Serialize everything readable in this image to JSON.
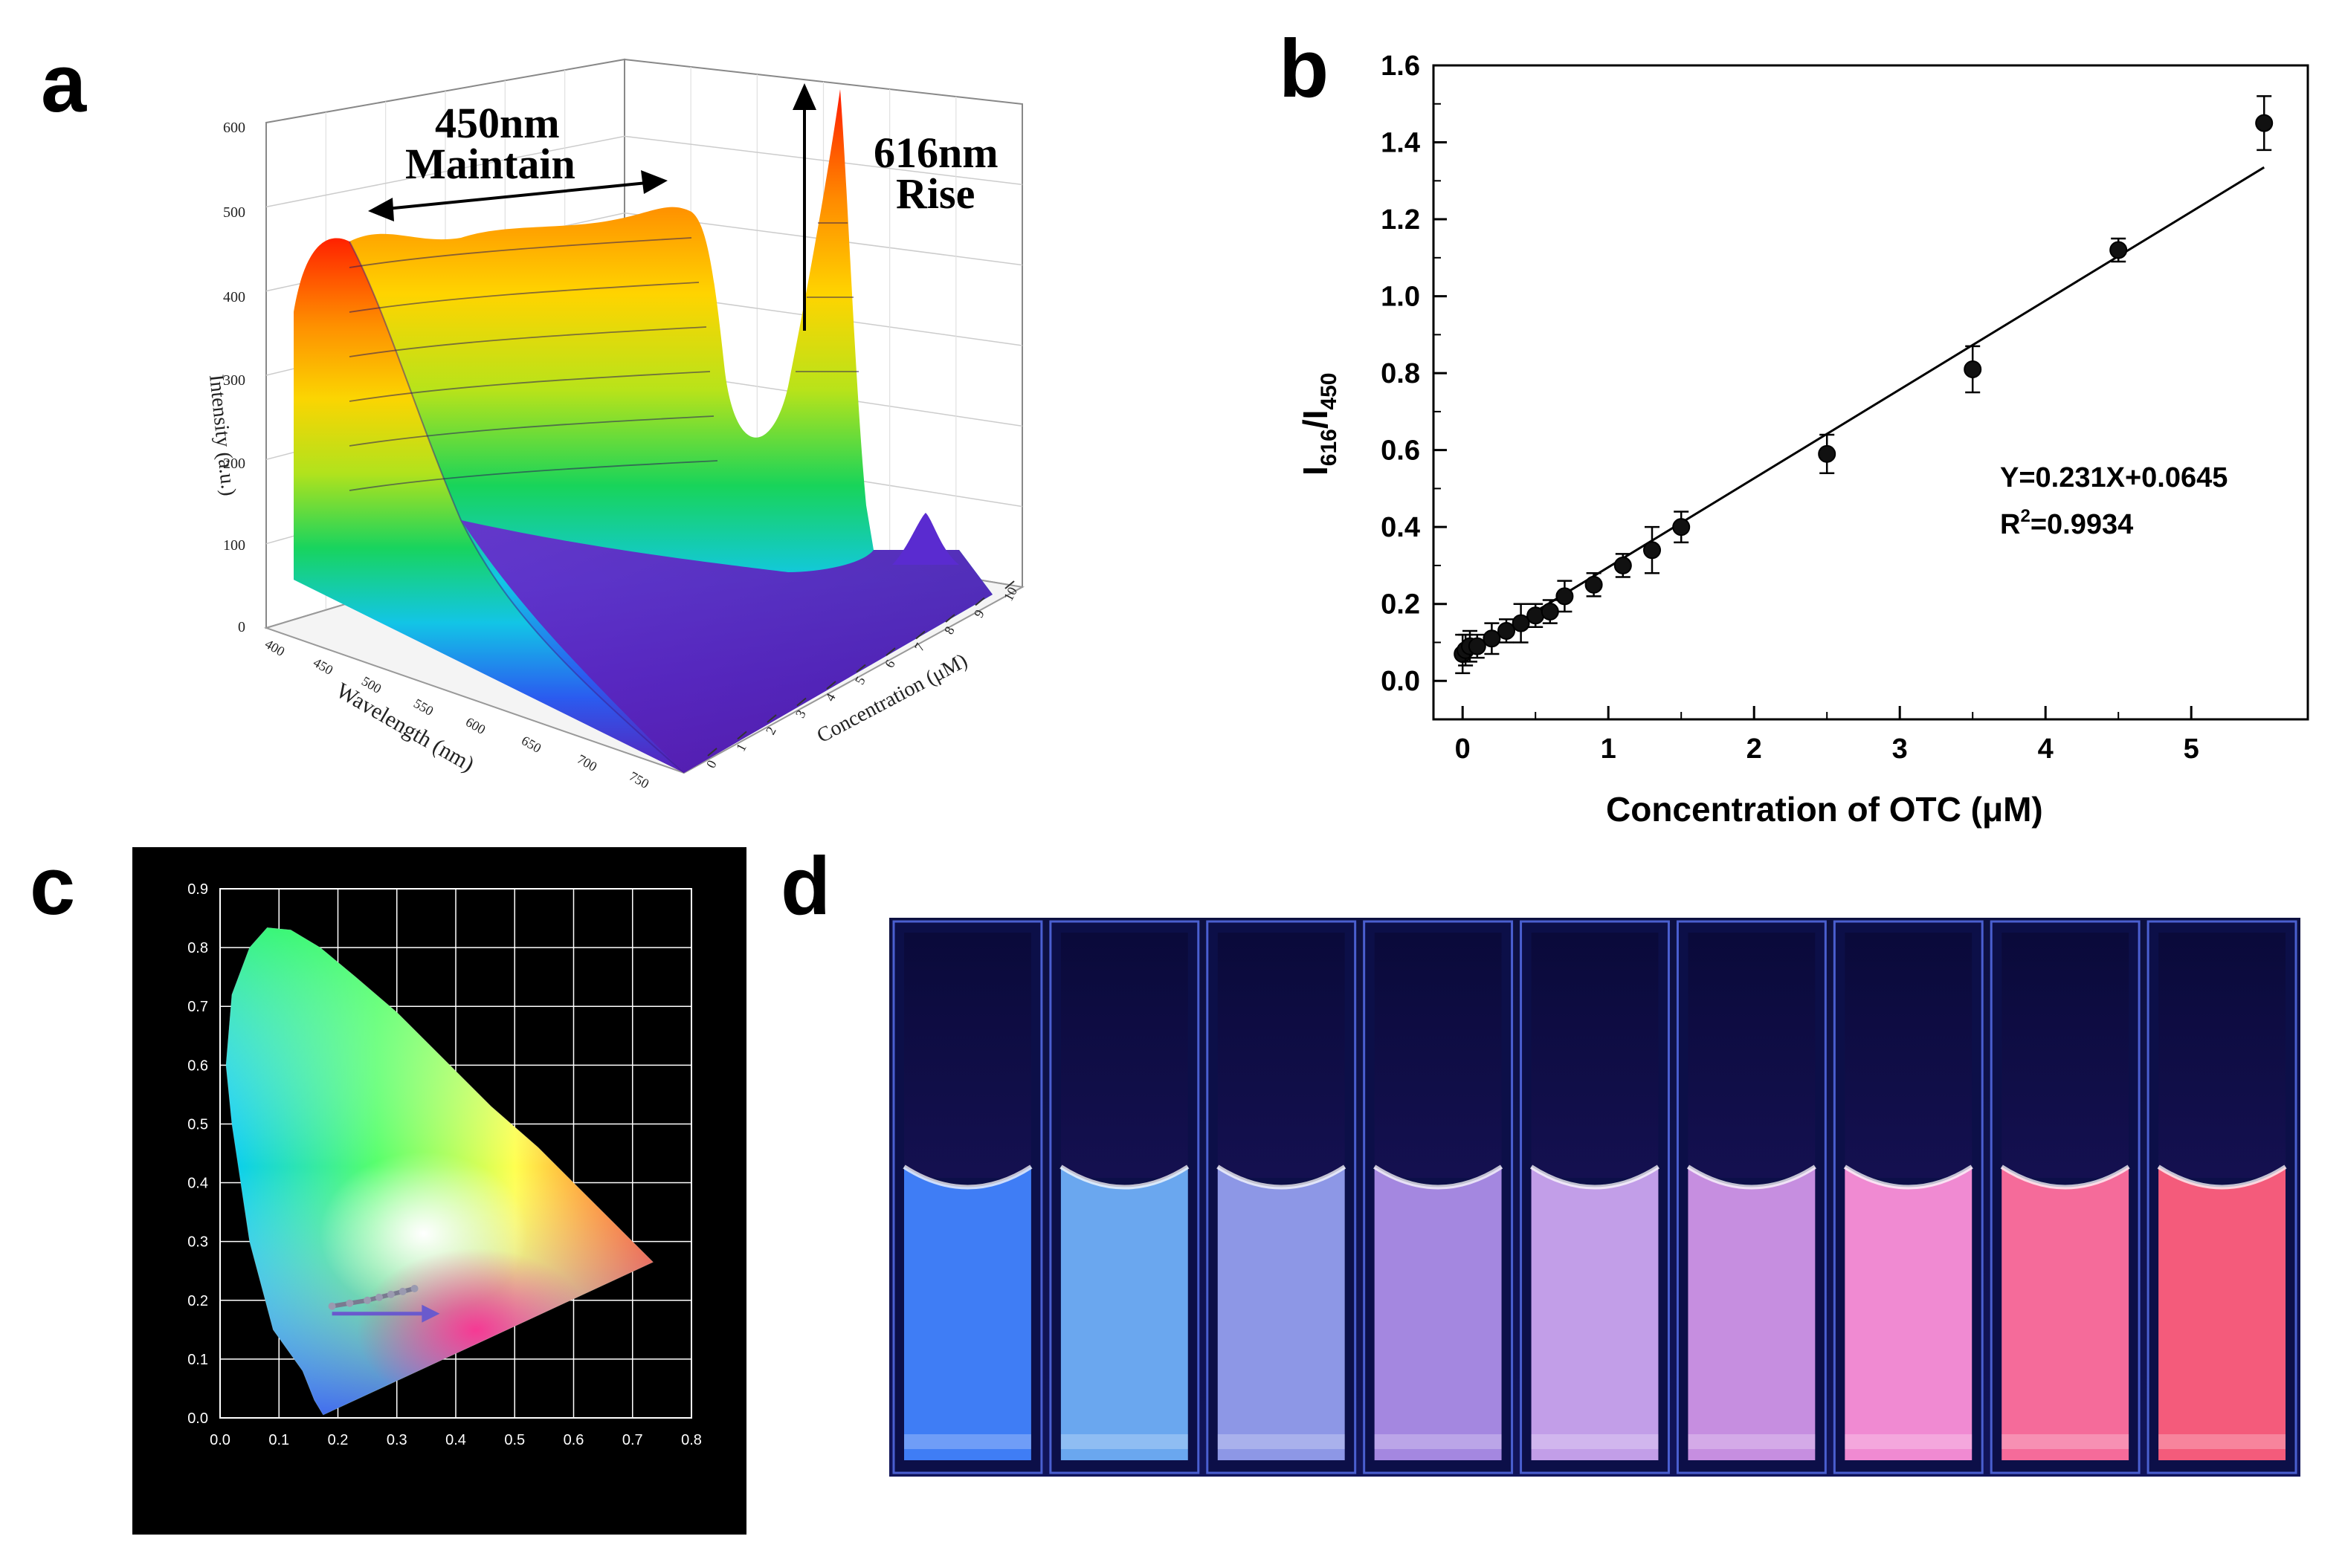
{
  "panels": {
    "a": {
      "letter": "a"
    },
    "b": {
      "letter": "b"
    },
    "c": {
      "letter": "c"
    },
    "d": {
      "letter": "d"
    }
  },
  "chart_data": [
    {
      "id": "a",
      "type": "surface3d",
      "title": "",
      "zlabel": "Intensity (a.u.)",
      "xlabel": "Wavelength (nm)",
      "ylabel": "Concentration (μM)",
      "z_ticks": [
        "0",
        "100",
        "200",
        "300",
        "400",
        "500",
        "600"
      ],
      "x_ticks": [
        "400",
        "450",
        "500",
        "550",
        "600",
        "650",
        "700",
        "750"
      ],
      "y_ticks": [
        "0",
        "1",
        "2",
        "3",
        "4",
        "5",
        "6",
        "7",
        "8",
        "9",
        "10"
      ],
      "zlim": [
        0,
        600
      ],
      "annotations": {
        "maintain_top": "450nm",
        "maintain_bottom": "Maintain",
        "rise_top": "616nm",
        "rise_bottom": "Rise"
      },
      "colors": [
        "#5a1fb8",
        "#2a5cf0",
        "#12c7e6",
        "#18d45a",
        "#b8e31a",
        "#ffd400",
        "#ff8a00",
        "#ff1a00"
      ]
    },
    {
      "id": "b",
      "type": "scatter",
      "xlabel": "Concentration of OTC (μM)",
      "ylabel_main": "I",
      "ylabel_sub1": "616",
      "ylabel_mid": "/I",
      "ylabel_sub2": "450",
      "xlim": [
        -0.2,
        5.8
      ],
      "ylim": [
        -0.1,
        1.6
      ],
      "x_ticks": [
        0,
        1,
        2,
        3,
        4,
        5
      ],
      "y_ticks": [
        0.0,
        0.2,
        0.4,
        0.6,
        0.8,
        1.0,
        1.2,
        1.4,
        1.6
      ],
      "x_tick_labels": [
        "0",
        "1",
        "2",
        "3",
        "4",
        "5"
      ],
      "y_tick_labels": [
        "0.0",
        "0.2",
        "0.4",
        "0.6",
        "0.8",
        "1.0",
        "1.2",
        "1.4",
        "1.6"
      ],
      "points": [
        {
          "x": 0.0,
          "y": 0.07,
          "err": 0.05
        },
        {
          "x": 0.02,
          "y": 0.08,
          "err": 0.04
        },
        {
          "x": 0.05,
          "y": 0.09,
          "err": 0.04
        },
        {
          "x": 0.1,
          "y": 0.09,
          "err": 0.03
        },
        {
          "x": 0.2,
          "y": 0.11,
          "err": 0.04
        },
        {
          "x": 0.3,
          "y": 0.13,
          "err": 0.03
        },
        {
          "x": 0.4,
          "y": 0.15,
          "err": 0.05
        },
        {
          "x": 0.5,
          "y": 0.17,
          "err": 0.03
        },
        {
          "x": 0.6,
          "y": 0.18,
          "err": 0.03
        },
        {
          "x": 0.7,
          "y": 0.22,
          "err": 0.04
        },
        {
          "x": 0.9,
          "y": 0.25,
          "err": 0.03
        },
        {
          "x": 1.1,
          "y": 0.3,
          "err": 0.03
        },
        {
          "x": 1.3,
          "y": 0.34,
          "err": 0.06
        },
        {
          "x": 1.5,
          "y": 0.4,
          "err": 0.04
        },
        {
          "x": 2.5,
          "y": 0.59,
          "err": 0.05
        },
        {
          "x": 3.5,
          "y": 0.81,
          "err": 0.06
        },
        {
          "x": 4.5,
          "y": 1.12,
          "err": 0.03
        },
        {
          "x": 5.5,
          "y": 1.45,
          "err": 0.07
        }
      ],
      "fit": {
        "slope": 0.231,
        "intercept": 0.0645,
        "x_range": [
          0.0,
          5.5
        ]
      },
      "equation": "Y=0.231X+0.0645",
      "r2_prefix": "R",
      "r2_sup": "2",
      "r2_suffix": "=0.9934"
    },
    {
      "id": "c",
      "type": "chromaticity",
      "xlim": [
        0.0,
        0.8
      ],
      "ylim": [
        0.0,
        0.9
      ],
      "x_tick_labels": [
        "0.0",
        "0.1",
        "0.2",
        "0.3",
        "0.4",
        "0.5",
        "0.6",
        "0.7",
        "0.8"
      ],
      "y_tick_labels": [
        "0.0",
        "0.1",
        "0.2",
        "0.3",
        "0.4",
        "0.5",
        "0.6",
        "0.7",
        "0.8",
        "0.9"
      ],
      "path_points": [
        {
          "x": 0.19,
          "y": 0.19
        },
        {
          "x": 0.22,
          "y": 0.195
        },
        {
          "x": 0.25,
          "y": 0.2
        },
        {
          "x": 0.27,
          "y": 0.205
        },
        {
          "x": 0.29,
          "y": 0.21
        },
        {
          "x": 0.31,
          "y": 0.215
        },
        {
          "x": 0.33,
          "y": 0.22
        }
      ],
      "arrow_end": {
        "x": 0.35,
        "y": 0.19
      }
    },
    {
      "id": "d",
      "type": "photo",
      "vial_colors": [
        "#3f7df5",
        "#6aa7ef",
        "#8d97e6",
        "#a487e0",
        "#c29ee8",
        "#c68ee0",
        "#f08ad2",
        "#f56b9a",
        "#f45b7b"
      ]
    }
  ]
}
